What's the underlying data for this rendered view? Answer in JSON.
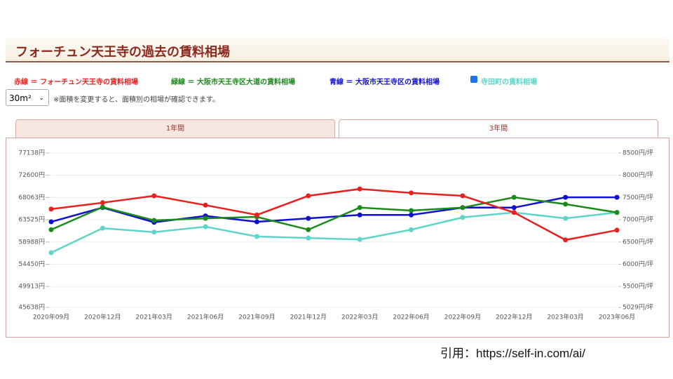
{
  "header": {
    "title": "フォーチュン天王寺の過去の賃料相場"
  },
  "controls": {
    "area": "30m²",
    "note": "※面積を変更すると、面積別の相場が確認できます。"
  },
  "tabs": [
    "1年間",
    "3年間"
  ],
  "chart_data": {
    "type": "line",
    "categories": [
      "2020年09月",
      "2020年12月",
      "2021年03月",
      "2021年06月",
      "2021年09月",
      "2021年12月",
      "2022年03月",
      "2022年06月",
      "2022年09月",
      "2022年12月",
      "2023年03月",
      "2023年06月"
    ],
    "series": [
      {
        "name": "寺田町の賃料相場",
        "color": "#5fd4c8",
        "values": [
          56800,
          61800,
          61000,
          62100,
          60100,
          59800,
          59500,
          61500,
          64000,
          65000,
          63800,
          65000
        ]
      },
      {
        "name": "青線 ＝ 大阪市天王寺区の賃料相場",
        "color": "#1010d0",
        "values": [
          63100,
          66000,
          63000,
          64300,
          63100,
          63800,
          64500,
          64500,
          66000,
          66000,
          68100,
          68100
        ]
      },
      {
        "name": "緑線 ＝ 大阪市天王寺区大道の賃料相場",
        "color": "#1a8a1a",
        "values": [
          61500,
          66100,
          63400,
          63800,
          64100,
          61500,
          66000,
          65400,
          66000,
          68100,
          66700,
          65000
        ]
      },
      {
        "name": "赤線 ＝ フォーチュン天王寺の賃料相場",
        "color": "#e8201e",
        "values": [
          65700,
          67000,
          68400,
          66500,
          64500,
          68400,
          69800,
          69000,
          68400,
          65000,
          59400,
          61400
        ]
      }
    ],
    "ylim": [
      45638,
      77138
    ],
    "yticks": [
      {
        "value": 45638,
        "label": "45638円"
      },
      {
        "value": 49913,
        "label": "49913円"
      },
      {
        "value": 54450,
        "label": "54450円"
      },
      {
        "value": 58988,
        "label": "58988円"
      },
      {
        "value": 63525,
        "label": "63525円"
      },
      {
        "value": 68063,
        "label": "68063円"
      },
      {
        "value": 72600,
        "label": "72600円"
      },
      {
        "value": 77138,
        "label": "77138円"
      }
    ],
    "y2lim": [
      5029,
      8500
    ],
    "y2ticks": [
      {
        "value": 5029,
        "label": "5029円/坪"
      },
      {
        "value": 5500,
        "label": "5500円/坪"
      },
      {
        "value": 6000,
        "label": "6000円/坪"
      },
      {
        "value": 6500,
        "label": "6500円/坪"
      },
      {
        "value": 7000,
        "label": "7000円/坪"
      },
      {
        "value": 7500,
        "label": "7500円/坪"
      },
      {
        "value": 8000,
        "label": "8000円/坪"
      },
      {
        "value": 8500,
        "label": "8500円/坪"
      }
    ],
    "grid": true
  },
  "citation": "引用：https://self-in.com/ai/"
}
